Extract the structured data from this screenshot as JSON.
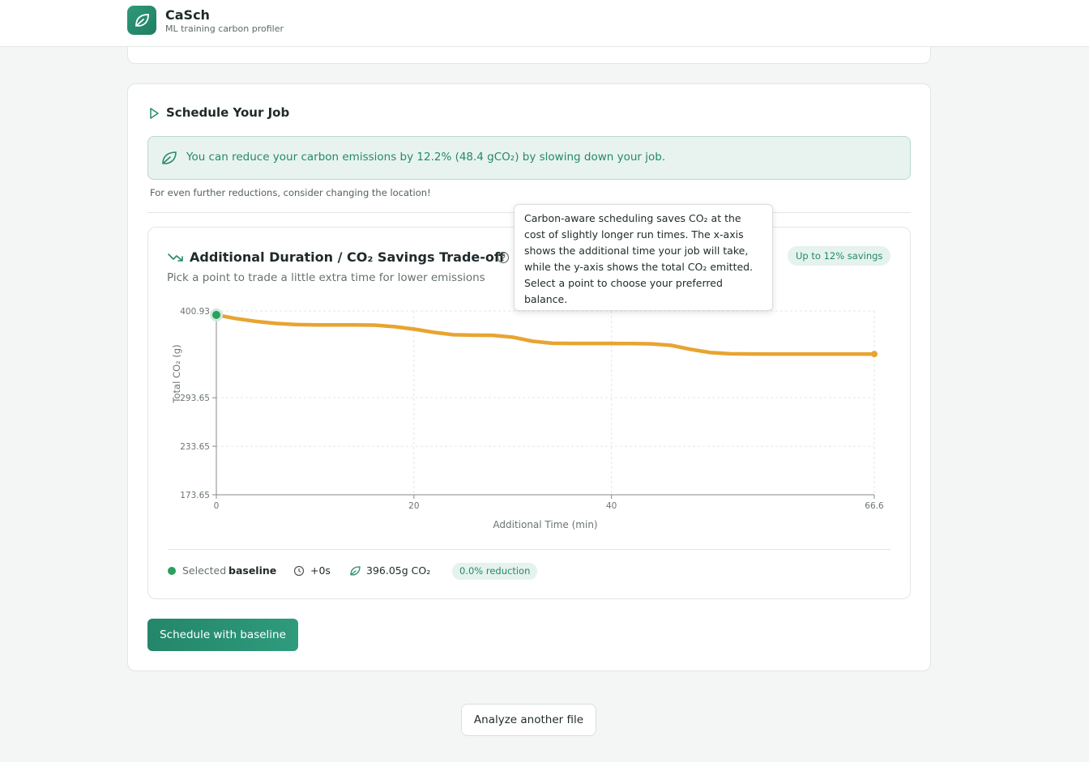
{
  "header": {
    "title": "CaSch",
    "subtitle": "ML training carbon profiler"
  },
  "schedule": {
    "title": "Schedule Your Job",
    "banner": "You can reduce your carbon emissions by 12.2% (48.4 gCO₂) by slowing down your job.",
    "note": "For even further reductions, consider changing the location!",
    "tradeoff_title": "Additional Duration / CO₂ Savings Trade-off",
    "tradeoff_subtitle": "Pick a point to trade a little extra time for lower emissions",
    "badge": "Up to 12% savings",
    "tooltip": "Carbon-aware scheduling saves CO₂ at the cost of slightly longer run times. The x-axis shows the additional time your job will take, while the y-axis shows the total CO₂ emitted. Select a point to choose your preferred balance.",
    "selection": {
      "label": "Selected",
      "name": "baseline",
      "time": "+0s",
      "co2": "396.05g CO₂",
      "reduction": "0.0% reduction"
    },
    "button": "Schedule with baseline"
  },
  "footer_button": "Analyze another file",
  "chart_data": {
    "type": "line",
    "x_label": "Additional Time (min)",
    "y_label": "Total CO₂ (g)",
    "x": [
      0,
      2,
      4,
      6,
      8,
      10,
      12,
      14,
      16,
      18,
      20,
      22,
      24,
      26,
      28,
      30,
      32,
      34,
      36,
      38,
      40,
      42,
      44,
      46,
      48,
      50,
      52,
      54,
      56,
      58,
      60,
      62,
      64,
      66.6
    ],
    "values": [
      396.05,
      391.5,
      388,
      385.5,
      384.2,
      383.7,
      383.6,
      383.6,
      383.4,
      381.5,
      378.5,
      374.5,
      371.5,
      371,
      370.8,
      368.5,
      363.5,
      361,
      360.7,
      360.7,
      360.7,
      360.6,
      360.3,
      358.5,
      353.5,
      349.5,
      348,
      347.7,
      347.65,
      347.65,
      347.65,
      347.65,
      347.65,
      347.65
    ],
    "color": "#e8a431",
    "xlim": [
      0,
      66.6
    ],
    "xticks": [
      0,
      20,
      40,
      66.6
    ],
    "ylim": [
      173.65,
      400.93
    ],
    "yticks": [
      173.65,
      233.65,
      293.65,
      400.93
    ],
    "grid": true
  }
}
